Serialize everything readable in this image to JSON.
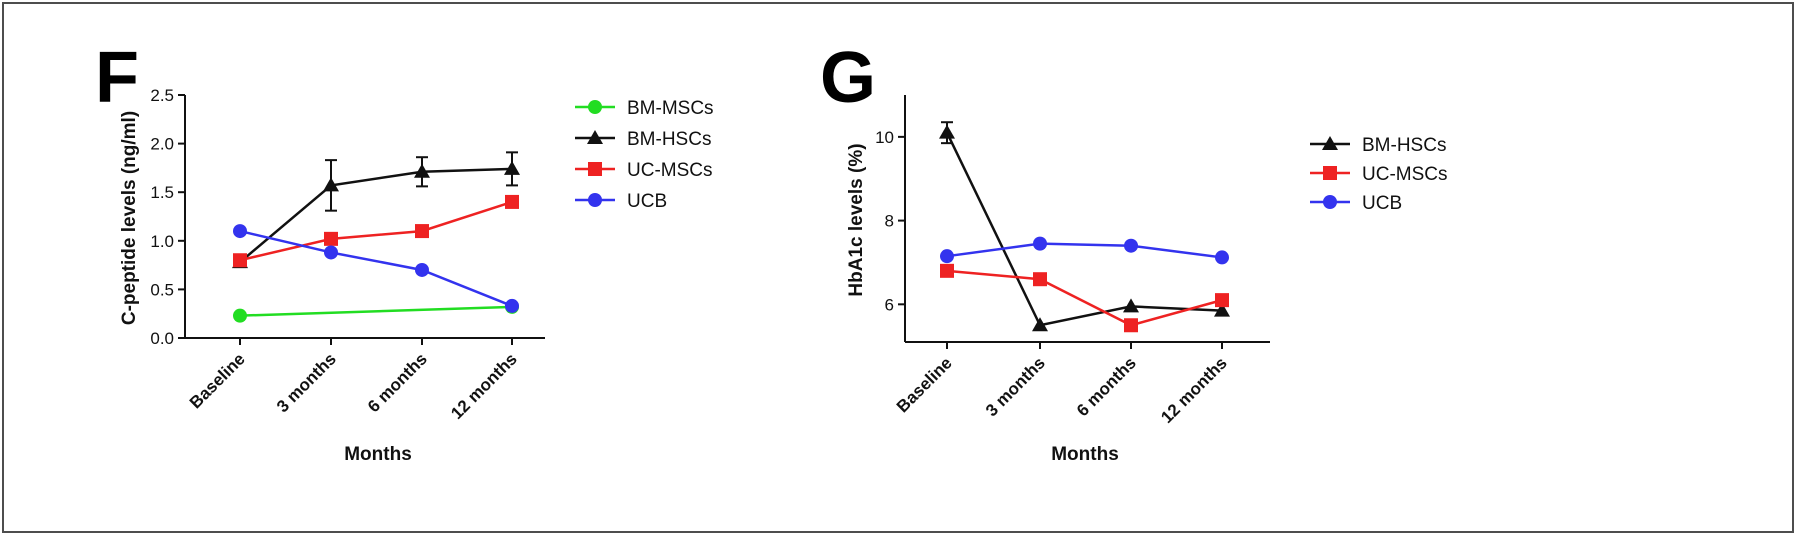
{
  "chart_data": [
    {
      "type": "line",
      "panel_label": "F",
      "title": "",
      "xlabel": "Months",
      "ylabel": "C-peptide levels (ng/ml)",
      "categories": [
        "Baseline",
        "3 months",
        "6 months",
        "12 months"
      ],
      "ylim": [
        0,
        2.5
      ],
      "yticks": [
        "0.0",
        "0.5",
        "1.0",
        "1.5",
        "2.0",
        "2.5"
      ],
      "legend_position": "right",
      "series": [
        {
          "name": "BM-MSCs",
          "color": "#22dd22",
          "marker": "circle",
          "values": [
            0.23,
            null,
            null,
            0.32
          ]
        },
        {
          "name": "BM-HSCs",
          "color": "#111111",
          "marker": "triangle",
          "values": [
            0.78,
            1.57,
            1.71,
            1.74
          ],
          "errors": [
            0.05,
            0.26,
            0.15,
            0.17
          ]
        },
        {
          "name": "UC-MSCs",
          "color": "#ee2222",
          "marker": "square",
          "values": [
            0.8,
            1.02,
            1.1,
            1.4
          ]
        },
        {
          "name": "UCB",
          "color": "#3333ee",
          "marker": "circle",
          "values": [
            1.1,
            0.88,
            0.7,
            0.33
          ]
        }
      ]
    },
    {
      "type": "line",
      "panel_label": "G",
      "title": "",
      "xlabel": "Months",
      "ylabel": "HbA1c levels (%)",
      "categories": [
        "Baseline",
        "3 months",
        "6 months",
        "12 months"
      ],
      "ylim": [
        5.1,
        11
      ],
      "yticks": [
        "6",
        "8",
        "10"
      ],
      "legend_position": "right",
      "series": [
        {
          "name": "BM-HSCs",
          "color": "#111111",
          "marker": "triangle",
          "values": [
            10.1,
            5.5,
            5.95,
            5.85
          ],
          "errors": [
            0.25,
            0,
            0,
            0
          ]
        },
        {
          "name": "UC-MSCs",
          "color": "#ee2222",
          "marker": "square",
          "values": [
            6.8,
            6.6,
            5.5,
            6.1
          ],
          "errors": [
            0.08,
            0.1,
            0.12,
            0.12
          ]
        },
        {
          "name": "UCB",
          "color": "#3333ee",
          "marker": "circle",
          "values": [
            7.15,
            7.45,
            7.4,
            7.12
          ]
        }
      ]
    }
  ]
}
